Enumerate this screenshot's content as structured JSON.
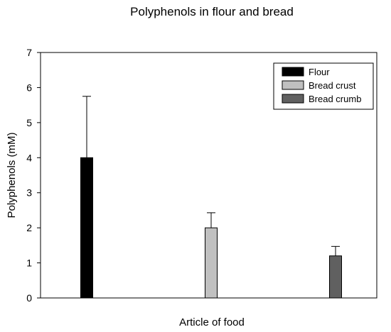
{
  "chart_data": {
    "type": "bar",
    "title": "Polyphenols in flour and bread",
    "xlabel": "Article of food",
    "ylabel": "Polyphenols (mM)",
    "ylim": [
      0,
      7
    ],
    "yticks": [
      "0",
      "1",
      "2",
      "3",
      "4",
      "5",
      "6",
      "7"
    ],
    "grid": false,
    "legend_position": "top-right",
    "series": [
      {
        "name": "Flour",
        "value": 4.0,
        "error": 1.75,
        "color": "#000000"
      },
      {
        "name": "Bread crust",
        "value": 2.0,
        "error": 0.43,
        "color": "#c0c0c0"
      },
      {
        "name": "Bread crumb",
        "value": 1.2,
        "error": 0.27,
        "color": "#606060"
      }
    ]
  }
}
